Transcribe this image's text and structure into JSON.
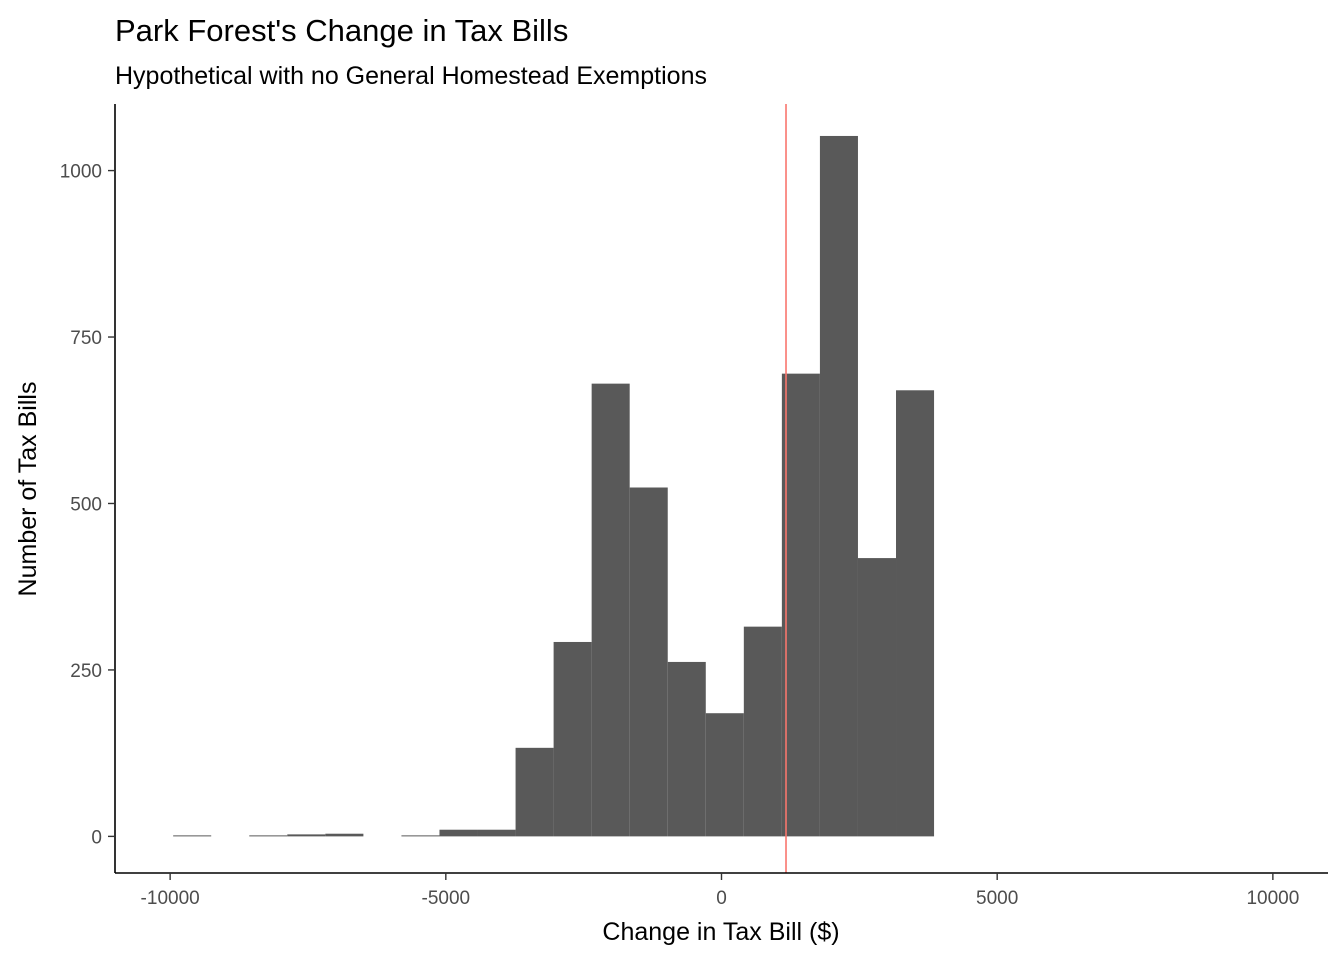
{
  "chart_data": {
    "type": "bar",
    "title": "Park Forest's Change in Tax Bills",
    "subtitle": "Hypothetical with no General Homestead Exemptions",
    "xlabel": "Change in Tax Bill ($)",
    "ylabel": "Number of Tax Bills",
    "xlim": [
      -11000,
      11000
    ],
    "ylim": [
      -55,
      1100
    ],
    "x_ticks": [
      -10000,
      -5000,
      0,
      5000,
      10000
    ],
    "x_tick_labels": [
      "-10000",
      "-5000",
      "0",
      "5000",
      "10000"
    ],
    "y_ticks": [
      0,
      250,
      500,
      750,
      1000
    ],
    "y_tick_labels": [
      "0",
      "250",
      "500",
      "750",
      "1000"
    ],
    "bin_width": 690,
    "bins": [
      {
        "center": -9600,
        "count": 1
      },
      {
        "center": -8220,
        "count": 1
      },
      {
        "center": -7530,
        "count": 3
      },
      {
        "center": -6840,
        "count": 4
      },
      {
        "center": -5460,
        "count": 1
      },
      {
        "center": -4770,
        "count": 10
      },
      {
        "center": -4080,
        "count": 10
      },
      {
        "center": -3390,
        "count": 133
      },
      {
        "center": -2700,
        "count": 292
      },
      {
        "center": -2010,
        "count": 680
      },
      {
        "center": -1320,
        "count": 524
      },
      {
        "center": -630,
        "count": 262
      },
      {
        "center": 60,
        "count": 185
      },
      {
        "center": 750,
        "count": 315
      },
      {
        "center": 1440,
        "count": 695
      },
      {
        "center": 2130,
        "count": 1052
      },
      {
        "center": 2820,
        "count": 418
      },
      {
        "center": 3510,
        "count": 670
      }
    ],
    "bar_color": "#595959",
    "reference_line": {
      "x": 1170,
      "color": "#f8766d"
    },
    "grid": false
  }
}
